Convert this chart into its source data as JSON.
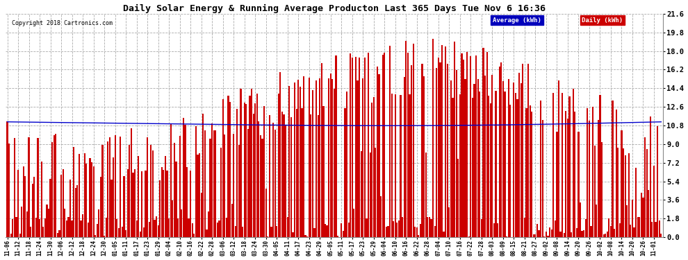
{
  "title": "Daily Solar Energy & Running Average Producton Last 365 Days Tue Nov 6 16:36",
  "copyright": "Copyright 2018 Cartronics.com",
  "legend_labels": [
    "Average (kWh)",
    "Daily (kWh)"
  ],
  "legend_bg_colors": [
    "#0000bb",
    "#cc0000"
  ],
  "bar_color": "#cc0000",
  "line_color": "#0000cc",
  "background_color": "#ffffff",
  "plot_bg_color": "#ffffff",
  "grid_color": "#aaaaaa",
  "ylim": [
    0,
    21.6
  ],
  "yticks": [
    0.0,
    1.8,
    3.6,
    5.4,
    7.2,
    9.0,
    10.8,
    12.6,
    14.4,
    16.2,
    18.0,
    19.8,
    21.6
  ],
  "xtick_labels": [
    "11-06",
    "11-12",
    "11-18",
    "11-24",
    "11-30",
    "12-06",
    "12-12",
    "12-18",
    "12-24",
    "12-30",
    "01-05",
    "01-11",
    "01-17",
    "01-23",
    "01-29",
    "02-04",
    "02-10",
    "02-16",
    "02-22",
    "02-28",
    "03-06",
    "03-12",
    "03-18",
    "03-24",
    "03-30",
    "04-05",
    "04-11",
    "04-17",
    "04-23",
    "04-29",
    "05-05",
    "05-11",
    "05-17",
    "05-23",
    "05-29",
    "06-04",
    "06-10",
    "06-16",
    "06-22",
    "06-28",
    "07-04",
    "07-10",
    "07-16",
    "07-22",
    "07-28",
    "08-03",
    "08-09",
    "08-15",
    "08-21",
    "08-27",
    "09-02",
    "09-08",
    "09-14",
    "09-20",
    "09-26",
    "10-02",
    "10-08",
    "10-14",
    "10-20",
    "10-26",
    "11-01"
  ],
  "n_days": 365,
  "seed": 42,
  "figsize": [
    9.9,
    3.75
  ],
  "dpi": 100
}
